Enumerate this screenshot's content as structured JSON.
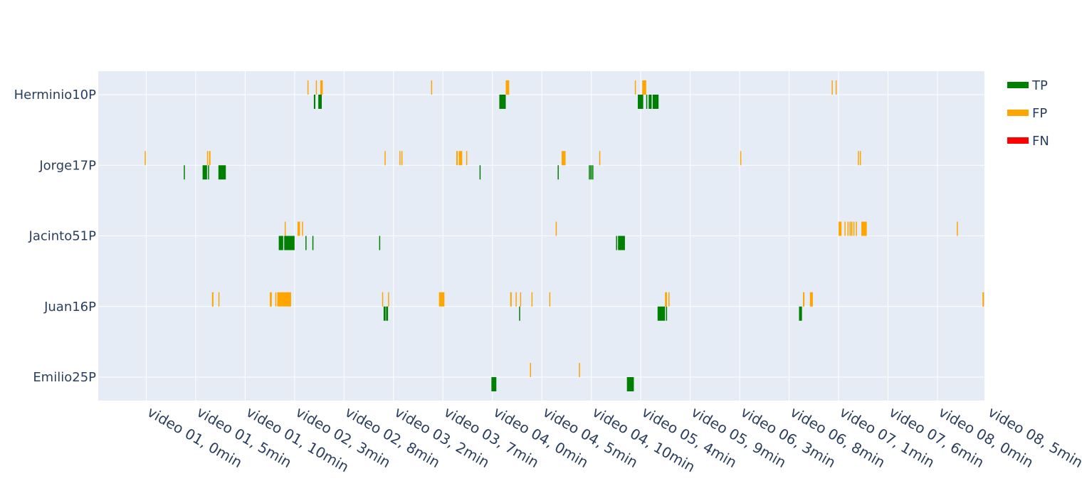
{
  "chart_data": {
    "type": "bar",
    "orientation": "horizontal-timeline",
    "grid": true,
    "legend_position": "top-right",
    "colors": {
      "TP": "#008000",
      "FP": "#ffa500",
      "FN": "#ff0000",
      "plot_bg": "#e5ecf6",
      "grid": "#ffffff"
    },
    "categories": [
      "Herminio10P",
      "Jorge17P",
      "Jacinto51P",
      "Juan16P",
      "Emilio25P"
    ],
    "x_ticks": [
      "video 01, 0min",
      "video 01, 5min",
      "video 01, 10min",
      "video 02, 3min",
      "video 02, 8min",
      "video 03, 2min",
      "video 03, 7min",
      "video 04, 0min",
      "video 04, 5min",
      "video 04, 10min",
      "video 05, 4min",
      "video 05, 9min",
      "video 06, 3min",
      "video 06, 8min",
      "video 07, 1min",
      "video 07, 6min",
      "video 08, 0min",
      "video 08, 5min"
    ],
    "x_range": [
      -0.97,
      16.95
    ],
    "legend": [
      "TP",
      "FP",
      "FN"
    ],
    "series": [
      {
        "name": "TP",
        "segments": [
          {
            "category": "Herminio10P",
            "start": 3.39,
            "end": 3.42
          },
          {
            "category": "Herminio10P",
            "start": 3.48,
            "end": 3.55
          },
          {
            "category": "Herminio10P",
            "start": 7.14,
            "end": 7.27
          },
          {
            "category": "Herminio10P",
            "start": 9.94,
            "end": 10.05
          },
          {
            "category": "Herminio10P",
            "start": 10.11,
            "end": 10.13
          },
          {
            "category": "Herminio10P",
            "start": 10.16,
            "end": 10.22
          },
          {
            "category": "Herminio10P",
            "start": 10.24,
            "end": 10.36
          },
          {
            "category": "Jorge17P",
            "start": 0.76,
            "end": 0.78
          },
          {
            "category": "Jorge17P",
            "start": 1.14,
            "end": 1.23
          },
          {
            "category": "Jorge17P",
            "start": 1.25,
            "end": 1.27
          },
          {
            "category": "Jorge17P",
            "start": 1.46,
            "end": 1.61
          },
          {
            "category": "Jorge17P",
            "start": 6.74,
            "end": 6.76
          },
          {
            "category": "Jorge17P",
            "start": 8.32,
            "end": 8.34
          },
          {
            "category": "Jorge17P",
            "start": 8.95,
            "end": 8.97
          },
          {
            "category": "Jorge17P",
            "start": 8.98,
            "end": 9.01
          },
          {
            "category": "Jorge17P",
            "start": 9.02,
            "end": 9.04
          },
          {
            "category": "Jacinto51P",
            "start": 2.68,
            "end": 2.77
          },
          {
            "category": "Jacinto51P",
            "start": 2.79,
            "end": 3.0
          },
          {
            "category": "Jacinto51P",
            "start": 3.22,
            "end": 3.24
          },
          {
            "category": "Jacinto51P",
            "start": 3.36,
            "end": 3.38
          },
          {
            "category": "Jacinto51P",
            "start": 4.71,
            "end": 4.73
          },
          {
            "category": "Jacinto51P",
            "start": 9.5,
            "end": 9.52
          },
          {
            "category": "Jacinto51P",
            "start": 9.54,
            "end": 9.68
          },
          {
            "category": "Juan16P",
            "start": 4.8,
            "end": 4.84
          },
          {
            "category": "Juan16P",
            "start": 4.85,
            "end": 4.89
          },
          {
            "category": "Juan16P",
            "start": 7.54,
            "end": 7.56
          },
          {
            "category": "Juan16P",
            "start": 10.34,
            "end": 10.49
          },
          {
            "category": "Juan16P",
            "start": 10.51,
            "end": 10.53
          },
          {
            "category": "Juan16P",
            "start": 13.2,
            "end": 13.26
          },
          {
            "category": "Emilio25P",
            "start": 6.98,
            "end": 7.08
          },
          {
            "category": "Emilio25P",
            "start": 9.72,
            "end": 9.86
          }
        ]
      },
      {
        "name": "FP",
        "segments": [
          {
            "category": "Herminio10P",
            "start": 3.26,
            "end": 3.28
          },
          {
            "category": "Herminio10P",
            "start": 3.43,
            "end": 3.45
          },
          {
            "category": "Herminio10P",
            "start": 3.52,
            "end": 3.57
          },
          {
            "category": "Herminio10P",
            "start": 5.76,
            "end": 5.78
          },
          {
            "category": "Herminio10P",
            "start": 7.27,
            "end": 7.34
          },
          {
            "category": "Herminio10P",
            "start": 9.88,
            "end": 9.9
          },
          {
            "category": "Herminio10P",
            "start": 10.03,
            "end": 10.11
          },
          {
            "category": "Herminio10P",
            "start": 13.86,
            "end": 13.88
          },
          {
            "category": "Herminio10P",
            "start": 13.94,
            "end": 13.96
          },
          {
            "category": "Jorge17P",
            "start": -0.03,
            "end": -0.01
          },
          {
            "category": "Jorge17P",
            "start": 1.23,
            "end": 1.25
          },
          {
            "category": "Jorge17P",
            "start": 1.27,
            "end": 1.3
          },
          {
            "category": "Jorge17P",
            "start": 4.82,
            "end": 4.84
          },
          {
            "category": "Jorge17P",
            "start": 5.12,
            "end": 5.14
          },
          {
            "category": "Jorge17P",
            "start": 5.16,
            "end": 5.18
          },
          {
            "category": "Jorge17P",
            "start": 6.27,
            "end": 6.3
          },
          {
            "category": "Jorge17P",
            "start": 6.32,
            "end": 6.39
          },
          {
            "category": "Jorge17P",
            "start": 6.47,
            "end": 6.49
          },
          {
            "category": "Jorge17P",
            "start": 8.4,
            "end": 8.48
          },
          {
            "category": "Jorge17P",
            "start": 9.16,
            "end": 9.18
          },
          {
            "category": "Jorge17P",
            "start": 12.01,
            "end": 12.03
          },
          {
            "category": "Jorge17P",
            "start": 14.39,
            "end": 14.41
          },
          {
            "category": "Jorge17P",
            "start": 14.43,
            "end": 14.45
          },
          {
            "category": "Jacinto51P",
            "start": 2.8,
            "end": 2.82
          },
          {
            "category": "Jacinto51P",
            "start": 3.06,
            "end": 3.11
          },
          {
            "category": "Jacinto51P",
            "start": 3.15,
            "end": 3.17
          },
          {
            "category": "Jacinto51P",
            "start": 8.28,
            "end": 8.3
          },
          {
            "category": "Jacinto51P",
            "start": 14.0,
            "end": 14.06
          },
          {
            "category": "Jacinto51P",
            "start": 14.12,
            "end": 14.14
          },
          {
            "category": "Jacinto51P",
            "start": 14.18,
            "end": 14.2
          },
          {
            "category": "Jacinto51P",
            "start": 14.22,
            "end": 14.24
          },
          {
            "category": "Jacinto51P",
            "start": 14.25,
            "end": 14.28
          },
          {
            "category": "Jacinto51P",
            "start": 14.3,
            "end": 14.32
          },
          {
            "category": "Jacinto51P",
            "start": 14.35,
            "end": 14.37
          },
          {
            "category": "Jacinto51P",
            "start": 14.46,
            "end": 14.57
          },
          {
            "category": "Jacinto51P",
            "start": 16.39,
            "end": 16.41
          },
          {
            "category": "Juan16P",
            "start": 1.33,
            "end": 1.36
          },
          {
            "category": "Juan16P",
            "start": 1.46,
            "end": 1.48
          },
          {
            "category": "Juan16P",
            "start": 2.5,
            "end": 2.54
          },
          {
            "category": "Juan16P",
            "start": 2.61,
            "end": 2.63
          },
          {
            "category": "Juan16P",
            "start": 2.65,
            "end": 2.93
          },
          {
            "category": "Juan16P",
            "start": 4.77,
            "end": 4.79
          },
          {
            "category": "Juan16P",
            "start": 4.89,
            "end": 4.91
          },
          {
            "category": "Juan16P",
            "start": 5.92,
            "end": 6.03
          },
          {
            "category": "Juan16P",
            "start": 7.36,
            "end": 7.39
          },
          {
            "category": "Juan16P",
            "start": 7.47,
            "end": 7.49
          },
          {
            "category": "Juan16P",
            "start": 7.56,
            "end": 7.58
          },
          {
            "category": "Juan16P",
            "start": 7.79,
            "end": 7.81
          },
          {
            "category": "Juan16P",
            "start": 8.15,
            "end": 8.17
          },
          {
            "category": "Juan16P",
            "start": 10.49,
            "end": 10.53
          },
          {
            "category": "Juan16P",
            "start": 10.56,
            "end": 10.58
          },
          {
            "category": "Juan16P",
            "start": 13.28,
            "end": 13.31
          },
          {
            "category": "Juan16P",
            "start": 13.42,
            "end": 13.48
          },
          {
            "category": "Juan16P",
            "start": 16.91,
            "end": 16.94
          },
          {
            "category": "Emilio25P",
            "start": 7.76,
            "end": 7.78
          },
          {
            "category": "Emilio25P",
            "start": 8.75,
            "end": 8.77
          }
        ]
      },
      {
        "name": "FN",
        "segments": []
      }
    ]
  }
}
